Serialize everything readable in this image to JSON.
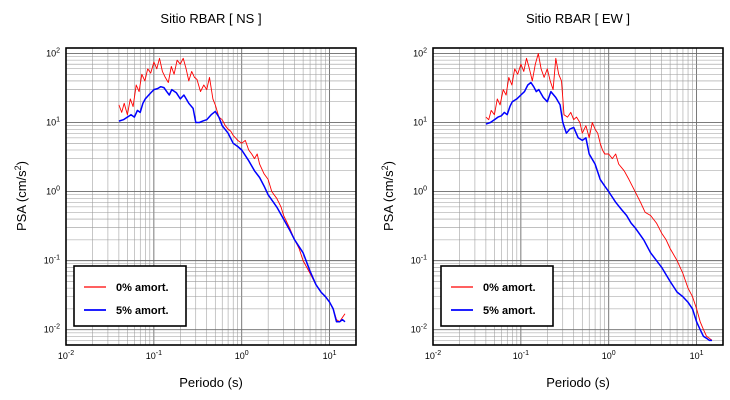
{
  "chart_data": [
    {
      "type": "line",
      "title": "Sitio RBAR [ NS ]",
      "xlabel": "Periodo (s)",
      "ylabel": "PSA (cm/s",
      "ylabel_sup": "2",
      "ylabel_close": ")",
      "xscale": "log",
      "yscale": "log",
      "xlim": [
        0.01,
        20
      ],
      "ylim": [
        0.006,
        120
      ],
      "x_ticks": [
        {
          "base": "10",
          "exp": "-2"
        },
        {
          "base": "10",
          "exp": "-1"
        },
        {
          "base": "10",
          "exp": "0"
        },
        {
          "base": "10",
          "exp": "1"
        }
      ],
      "y_ticks": [
        {
          "base": "10",
          "exp": "-2"
        },
        {
          "base": "10",
          "exp": "-1"
        },
        {
          "base": "10",
          "exp": "0"
        },
        {
          "base": "10",
          "exp": "1"
        },
        {
          "base": "10",
          "exp": "2"
        }
      ],
      "grid": true,
      "legend_position": "bottom-left",
      "series": [
        {
          "name": "0% amort.",
          "color": "#ff0000",
          "x": [
            0.04,
            0.043,
            0.046,
            0.05,
            0.054,
            0.058,
            0.063,
            0.068,
            0.073,
            0.079,
            0.085,
            0.092,
            0.1,
            0.108,
            0.116,
            0.125,
            0.135,
            0.146,
            0.158,
            0.17,
            0.184,
            0.2,
            0.216,
            0.233,
            0.25,
            0.27,
            0.29,
            0.31,
            0.34,
            0.37,
            0.4,
            0.43,
            0.47,
            0.5,
            0.55,
            0.6,
            0.65,
            0.7,
            0.75,
            0.8,
            0.85,
            0.9,
            1.0,
            1.1,
            1.2,
            1.3,
            1.4,
            1.5,
            1.6,
            1.8,
            2.0,
            2.2,
            2.5,
            2.8,
            3.0,
            3.5,
            4.0,
            4.5,
            5.0,
            6.0,
            7.0,
            8.0,
            9.0,
            10.0,
            11.0,
            12.0,
            13.0,
            14.0,
            15.0
          ],
          "y": [
            18,
            14,
            19,
            13,
            22,
            17,
            35,
            28,
            50,
            40,
            60,
            52,
            75,
            60,
            85,
            55,
            45,
            38,
            65,
            50,
            80,
            70,
            85,
            60,
            40,
            55,
            45,
            42,
            28,
            35,
            30,
            45,
            22,
            18,
            12,
            11,
            9,
            8,
            7.5,
            6.5,
            6,
            5.5,
            5,
            5.5,
            4,
            3.5,
            3,
            3.5,
            2.5,
            1.8,
            1.5,
            1.0,
            0.8,
            0.6,
            0.45,
            0.3,
            0.2,
            0.15,
            0.1,
            0.065,
            0.045,
            0.035,
            0.03,
            0.025,
            0.02,
            0.014,
            0.013,
            0.015,
            0.017
          ]
        },
        {
          "name": "5% amort.",
          "color": "#0000ff",
          "x": [
            0.04,
            0.045,
            0.05,
            0.055,
            0.06,
            0.065,
            0.07,
            0.075,
            0.08,
            0.09,
            0.1,
            0.11,
            0.12,
            0.13,
            0.14,
            0.15,
            0.16,
            0.18,
            0.2,
            0.22,
            0.25,
            0.28,
            0.3,
            0.33,
            0.36,
            0.4,
            0.45,
            0.5,
            0.55,
            0.6,
            0.7,
            0.8,
            0.9,
            1.0,
            1.2,
            1.4,
            1.6,
            1.8,
            2.0,
            2.5,
            3.0,
            3.5,
            4.0,
            5.0,
            6.0,
            7.0,
            8.0,
            9.0,
            10.0,
            11.0,
            12.0,
            13.0,
            14.0,
            15.0
          ],
          "y": [
            10.5,
            11,
            12,
            13,
            12,
            15,
            14,
            19,
            22,
            26,
            30,
            31,
            33,
            32,
            28,
            25,
            30,
            27,
            22,
            25,
            19,
            16,
            10,
            10,
            10.5,
            11,
            13,
            14.5,
            12,
            9,
            7,
            5,
            4.5,
            4,
            2.8,
            2.0,
            1.6,
            1.2,
            0.9,
            0.6,
            0.4,
            0.28,
            0.2,
            0.13,
            0.07,
            0.045,
            0.035,
            0.03,
            0.025,
            0.02,
            0.013,
            0.013,
            0.014,
            0.013
          ]
        }
      ]
    },
    {
      "type": "line",
      "title": "Sitio RBAR [ EW ]",
      "xlabel": "Periodo (s)",
      "ylabel": "PSA (cm/s",
      "ylabel_sup": "2",
      "ylabel_close": ")",
      "xscale": "log",
      "yscale": "log",
      "xlim": [
        0.01,
        20
      ],
      "ylim": [
        0.006,
        120
      ],
      "x_ticks": [
        {
          "base": "10",
          "exp": "-2"
        },
        {
          "base": "10",
          "exp": "-1"
        },
        {
          "base": "10",
          "exp": "0"
        },
        {
          "base": "10",
          "exp": "1"
        }
      ],
      "y_ticks": [
        {
          "base": "10",
          "exp": "-2"
        },
        {
          "base": "10",
          "exp": "-1"
        },
        {
          "base": "10",
          "exp": "0"
        },
        {
          "base": "10",
          "exp": "1"
        },
        {
          "base": "10",
          "exp": "2"
        }
      ],
      "grid": true,
      "legend_position": "bottom-left",
      "series": [
        {
          "name": "0% amort.",
          "color": "#ff0000",
          "x": [
            0.04,
            0.043,
            0.046,
            0.05,
            0.054,
            0.058,
            0.063,
            0.068,
            0.073,
            0.079,
            0.085,
            0.092,
            0.1,
            0.108,
            0.116,
            0.125,
            0.135,
            0.146,
            0.158,
            0.17,
            0.184,
            0.2,
            0.216,
            0.233,
            0.25,
            0.27,
            0.29,
            0.31,
            0.34,
            0.37,
            0.4,
            0.43,
            0.47,
            0.5,
            0.55,
            0.6,
            0.65,
            0.7,
            0.75,
            0.8,
            0.85,
            0.9,
            1.0,
            1.1,
            1.2,
            1.3,
            1.5,
            1.7,
            2.0,
            2.3,
            2.6,
            3.0,
            3.5,
            4.0,
            4.5,
            5.0,
            6.0,
            7.0,
            8.0,
            9.0,
            10.0,
            11.0,
            12.0,
            13.0,
            14.0,
            15.0
          ],
          "y": [
            12,
            11,
            15,
            13,
            22,
            18,
            30,
            25,
            45,
            35,
            60,
            50,
            70,
            55,
            85,
            60,
            40,
            70,
            100,
            60,
            45,
            60,
            40,
            30,
            85,
            50,
            40,
            13,
            12,
            14,
            11,
            12,
            10,
            7,
            9,
            6,
            10,
            8,
            7,
            5,
            4,
            3.5,
            3.5,
            3,
            3.5,
            2.5,
            2.0,
            1.5,
            1.0,
            0.7,
            0.5,
            0.45,
            0.35,
            0.25,
            0.2,
            0.15,
            0.1,
            0.065,
            0.04,
            0.03,
            0.02,
            0.013,
            0.01,
            0.008,
            0.0075,
            0.007
          ]
        },
        {
          "name": "5% amort.",
          "color": "#0000ff",
          "x": [
            0.04,
            0.045,
            0.05,
            0.055,
            0.06,
            0.065,
            0.07,
            0.075,
            0.08,
            0.09,
            0.1,
            0.11,
            0.12,
            0.13,
            0.14,
            0.15,
            0.16,
            0.18,
            0.2,
            0.22,
            0.25,
            0.28,
            0.3,
            0.33,
            0.36,
            0.4,
            0.45,
            0.5,
            0.55,
            0.6,
            0.7,
            0.8,
            0.9,
            1.0,
            1.2,
            1.4,
            1.6,
            1.8,
            2.0,
            2.5,
            3.0,
            3.5,
            4.0,
            5.0,
            6.0,
            7.0,
            8.0,
            9.0,
            10.0,
            11.0,
            12.0,
            13.0,
            14.0,
            15.0
          ],
          "y": [
            9.5,
            10,
            11,
            12,
            12.5,
            14,
            13,
            17,
            20,
            22,
            25,
            28,
            35,
            38,
            33,
            28,
            30,
            23,
            20,
            28,
            23,
            18,
            10,
            7,
            8,
            8.5,
            6,
            5.5,
            6,
            3.5,
            2.5,
            1.5,
            1.2,
            1.0,
            0.7,
            0.55,
            0.45,
            0.35,
            0.3,
            0.2,
            0.13,
            0.1,
            0.08,
            0.05,
            0.035,
            0.03,
            0.025,
            0.02,
            0.013,
            0.01,
            0.008,
            0.0075,
            0.007,
            0.007
          ]
        }
      ]
    }
  ]
}
